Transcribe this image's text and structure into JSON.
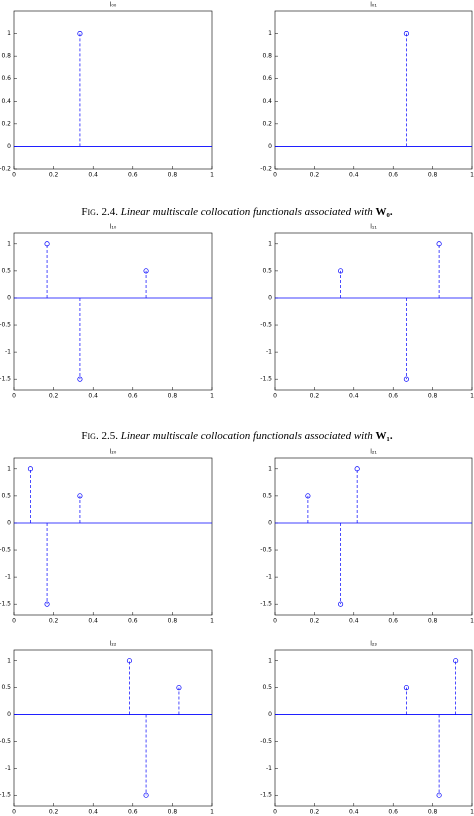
{
  "chart_data": [
    {
      "type": "stem",
      "title": "l₀₀",
      "x": [
        0.333
      ],
      "values": [
        1
      ],
      "color": "#0000ff",
      "xlim": [
        0,
        1
      ],
      "ylim": [
        -0.2,
        1.2
      ],
      "xticks": [
        0,
        0.2,
        0.4,
        0.6,
        0.8,
        1
      ],
      "yticks": [
        -0.2,
        0,
        0.2,
        0.4,
        0.6,
        0.8,
        1
      ]
    },
    {
      "type": "stem",
      "title": "l₀₁",
      "x": [
        0.667
      ],
      "values": [
        1
      ],
      "color": "#0000ff",
      "xlim": [
        0,
        1
      ],
      "ylim": [
        -0.2,
        1.2
      ],
      "xticks": [
        0,
        0.2,
        0.4,
        0.6,
        0.8,
        1
      ],
      "yticks": [
        -0.2,
        0,
        0.2,
        0.4,
        0.6,
        0.8,
        1
      ]
    },
    {
      "type": "stem",
      "title": "l₁₀",
      "x": [
        0.167,
        0.333,
        0.667
      ],
      "values": [
        1,
        -1.5,
        0.5
      ],
      "color": "#0000ff",
      "xlim": [
        0,
        1
      ],
      "ylim": [
        -1.7,
        1.2
      ],
      "xticks": [
        0,
        0.2,
        0.4,
        0.6,
        0.8,
        1
      ],
      "yticks": [
        -1.5,
        -1,
        -0.5,
        0,
        0.5,
        1
      ]
    },
    {
      "type": "stem",
      "title": "l₁₁",
      "x": [
        0.333,
        0.667,
        0.833
      ],
      "values": [
        0.5,
        -1.5,
        1
      ],
      "color": "#0000ff",
      "xlim": [
        0,
        1
      ],
      "ylim": [
        -1.7,
        1.2
      ],
      "xticks": [
        0,
        0.2,
        0.4,
        0.6,
        0.8,
        1
      ],
      "yticks": [
        -1.5,
        -1,
        -0.5,
        0,
        0.5,
        1
      ]
    },
    {
      "type": "stem",
      "title": "l₂₀",
      "x": [
        0.083,
        0.167,
        0.333
      ],
      "values": [
        1,
        -1.5,
        0.5
      ],
      "color": "#0000ff",
      "xlim": [
        0,
        1
      ],
      "ylim": [
        -1.7,
        1.2
      ],
      "xticks": [
        0,
        0.2,
        0.4,
        0.6,
        0.8,
        1
      ],
      "yticks": [
        -1.5,
        -1,
        -0.5,
        0,
        0.5,
        1
      ]
    },
    {
      "type": "stem",
      "title": "l₂₁",
      "x": [
        0.167,
        0.333,
        0.417
      ],
      "values": [
        0.5,
        -1.5,
        1
      ],
      "color": "#0000ff",
      "xlim": [
        0,
        1
      ],
      "ylim": [
        -1.7,
        1.2
      ],
      "xticks": [
        0,
        0.2,
        0.4,
        0.6,
        0.8,
        1
      ],
      "yticks": [
        -1.5,
        -1,
        -0.5,
        0,
        0.5,
        1
      ]
    },
    {
      "type": "stem",
      "title": "l₂₂",
      "x": [
        0.583,
        0.667,
        0.833
      ],
      "values": [
        1,
        -1.5,
        0.5
      ],
      "color": "#0000ff",
      "xlim": [
        0,
        1
      ],
      "ylim": [
        -1.7,
        1.2
      ],
      "xticks": [
        0,
        0.2,
        0.4,
        0.6,
        0.8,
        1
      ],
      "yticks": [
        -1.5,
        -1,
        -0.5,
        0,
        0.5,
        1
      ]
    },
    {
      "type": "stem",
      "title": "l₂₃",
      "x": [
        0.667,
        0.833,
        0.917
      ],
      "values": [
        0.5,
        -1.5,
        1
      ],
      "color": "#0000ff",
      "xlim": [
        0,
        1
      ],
      "ylim": [
        -1.7,
        1.2
      ],
      "xticks": [
        0,
        0.2,
        0.4,
        0.6,
        0.8,
        1
      ],
      "yticks": [
        -1.5,
        -1,
        -0.5,
        0,
        0.5,
        1
      ]
    }
  ],
  "captions": [
    {
      "label": "Fig. 2.4.",
      "text": "Linear multiscale collocation functionals associated with",
      "symbol": "W₀."
    },
    {
      "label": "Fig. 2.5.",
      "text": "Linear multiscale collocation functionals associated with",
      "symbol": "W₁."
    }
  ]
}
